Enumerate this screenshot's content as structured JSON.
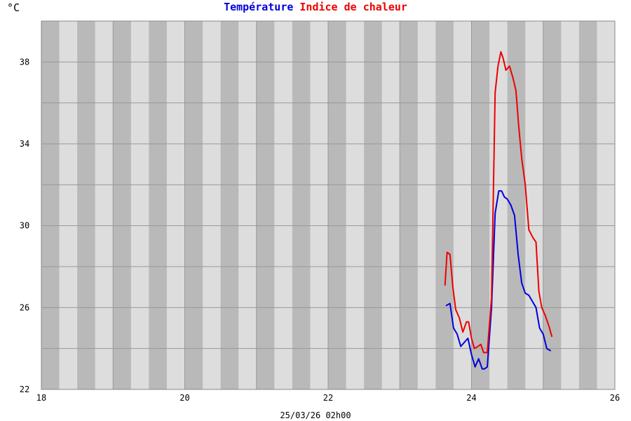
{
  "chart_data": {
    "type": "line",
    "ylabel": "°C",
    "xlabel": "25/03/26 02h00",
    "xlim": [
      18,
      26
    ],
    "ylim": [
      22,
      40
    ],
    "x_ticks": [
      18,
      20,
      22,
      24,
      26
    ],
    "y_ticks": [
      22,
      26,
      30,
      34,
      38
    ],
    "grid": true,
    "legend_position": "top-center",
    "colors": {
      "background": "#ffffff",
      "band_light": "#dddddd",
      "band_dark": "#b9b9b9",
      "grid": "#999999"
    },
    "series": [
      {
        "name": "Température",
        "color": "#0000dd",
        "x": [
          23.65,
          23.7,
          23.75,
          23.8,
          23.85,
          23.9,
          23.95,
          24.0,
          24.05,
          24.1,
          24.15,
          24.18,
          24.22,
          24.28,
          24.33,
          24.38,
          24.42,
          24.46,
          24.5,
          24.55,
          24.6,
          24.65,
          24.7,
          24.75,
          24.8,
          24.85,
          24.9,
          24.95,
          25.0,
          25.05,
          25.1
        ],
        "y": [
          26.1,
          26.2,
          25.0,
          24.7,
          24.1,
          24.3,
          24.5,
          23.7,
          23.1,
          23.5,
          23.0,
          23.0,
          23.1,
          26.0,
          30.6,
          31.7,
          31.7,
          31.4,
          31.3,
          31.0,
          30.5,
          28.6,
          27.2,
          26.7,
          26.6,
          26.3,
          26.0,
          25.0,
          24.7,
          24.0,
          23.9
        ]
      },
      {
        "name": "Indice de chaleur",
        "color": "#ee0000",
        "x": [
          23.63,
          23.66,
          23.7,
          23.74,
          23.78,
          23.83,
          23.88,
          23.93,
          23.96,
          24.0,
          24.04,
          24.09,
          24.13,
          24.17,
          24.22,
          24.28,
          24.33,
          24.37,
          24.41,
          24.44,
          24.48,
          24.53,
          24.58,
          24.62,
          24.66,
          24.7,
          24.75,
          24.8,
          24.86,
          24.9,
          24.94,
          24.98,
          25.03,
          25.08,
          25.12
        ],
        "y": [
          27.1,
          28.7,
          28.6,
          27.0,
          25.9,
          25.5,
          24.8,
          25.3,
          25.3,
          24.5,
          24.0,
          24.1,
          24.2,
          23.8,
          23.8,
          26.5,
          36.5,
          37.8,
          38.5,
          38.2,
          37.6,
          37.8,
          37.2,
          36.6,
          34.8,
          33.3,
          32.0,
          29.8,
          29.4,
          29.2,
          26.8,
          26.0,
          25.6,
          25.1,
          24.6
        ]
      }
    ]
  }
}
